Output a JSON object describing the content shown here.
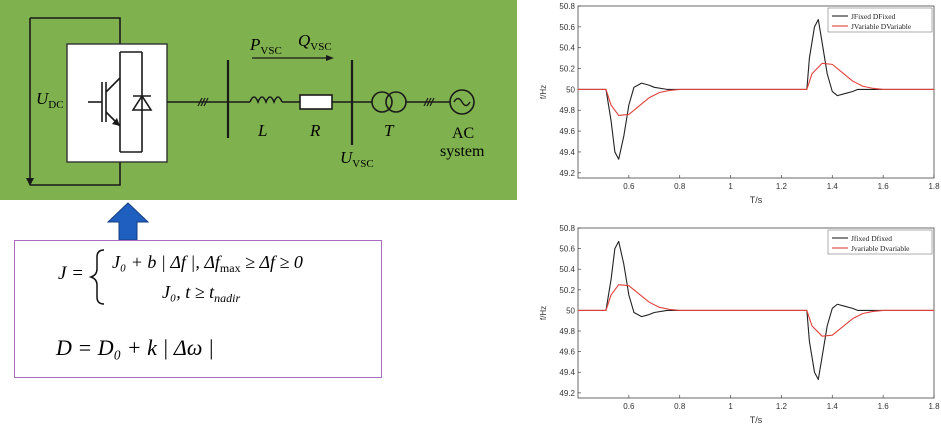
{
  "diagram": {
    "labels": {
      "udc_main": "U",
      "udc_sub": "DC",
      "p_main": "P",
      "p_sub": "VSC",
      "q_main": "Q",
      "q_sub": "VSC",
      "l": "L",
      "r": "R",
      "t": "T",
      "uvsc_main": "U",
      "uvsc_sub": "VSC",
      "ac_line1": "AC",
      "ac_line2": "system"
    },
    "colors": {
      "panel": "#7fb14e",
      "arrow": "#1f5fbf",
      "box_border": "#a96bc0"
    },
    "arrow_icon": "up-arrow-icon"
  },
  "formulas": {
    "j_lhs": "J =",
    "j_case1": "J₀ + b | Δf |,  Δf",
    "j_case1_sub": "max",
    "j_case1_tail": " ≥ Δf ≥ 0",
    "j_case2": "J₀,  t ≥ t",
    "j_case2_sub": "nadir",
    "d_eq": "D = D₀ + k | Δω |"
  },
  "chart_data": [
    {
      "type": "line",
      "xlabel": "T/s",
      "ylabel": "f/Hz",
      "xlim": [
        0.4,
        1.8
      ],
      "ylim": [
        49.15,
        50.8
      ],
      "xticks": [
        0.6,
        0.8,
        1,
        1.2,
        1.4,
        1.6,
        1.8
      ],
      "yticks": [
        49.2,
        49.4,
        49.6,
        49.8,
        50,
        50.2,
        50.4,
        50.6,
        50.8
      ],
      "legend_position": "top-right",
      "series": [
        {
          "name": "JFixed DFixed",
          "color": "#222222",
          "x": [
            0.4,
            0.51,
            0.53,
            0.545,
            0.56,
            0.58,
            0.6,
            0.62,
            0.65,
            0.68,
            0.7,
            0.75,
            0.8,
            1.3,
            1.31,
            1.33,
            1.345,
            1.36,
            1.38,
            1.4,
            1.42,
            1.45,
            1.48,
            1.5,
            1.55,
            1.6,
            1.8
          ],
          "y": [
            50,
            50,
            49.7,
            49.4,
            49.33,
            49.55,
            49.85,
            50.02,
            50.06,
            50.04,
            50.02,
            50,
            50,
            50,
            50.3,
            50.6,
            50.67,
            50.45,
            50.15,
            49.98,
            49.94,
            49.96,
            49.98,
            50,
            50,
            50,
            50
          ]
        },
        {
          "name": "JVariable DVariable",
          "color": "#e0403a",
          "x": [
            0.4,
            0.51,
            0.53,
            0.56,
            0.6,
            0.64,
            0.68,
            0.72,
            0.76,
            0.8,
            1.3,
            1.32,
            1.36,
            1.4,
            1.44,
            1.48,
            1.52,
            1.56,
            1.6,
            1.8
          ],
          "y": [
            50,
            50,
            49.85,
            49.75,
            49.76,
            49.84,
            49.92,
            49.97,
            49.99,
            50,
            50,
            50.15,
            50.25,
            50.24,
            50.16,
            50.08,
            50.03,
            50.01,
            50,
            50
          ]
        }
      ]
    },
    {
      "type": "line",
      "xlabel": "T/s",
      "ylabel": "f/Hz",
      "xlim": [
        0.4,
        1.8
      ],
      "ylim": [
        49.15,
        50.8
      ],
      "xticks": [
        0.6,
        0.8,
        1,
        1.2,
        1.4,
        1.6,
        1.8
      ],
      "yticks": [
        49.2,
        49.4,
        49.6,
        49.8,
        50,
        50.2,
        50.4,
        50.6,
        50.8
      ],
      "legend_position": "top-right",
      "series": [
        {
          "name": "Jfixed Dfixed",
          "color": "#222222",
          "x": [
            0.4,
            0.51,
            0.53,
            0.545,
            0.56,
            0.58,
            0.6,
            0.62,
            0.65,
            0.68,
            0.7,
            0.75,
            0.8,
            1.3,
            1.31,
            1.33,
            1.345,
            1.36,
            1.38,
            1.4,
            1.42,
            1.45,
            1.48,
            1.5,
            1.55,
            1.6,
            1.8
          ],
          "y": [
            50,
            50,
            50.3,
            50.6,
            50.67,
            50.45,
            50.15,
            49.98,
            49.94,
            49.96,
            49.98,
            50,
            50,
            50,
            49.7,
            49.4,
            49.33,
            49.55,
            49.85,
            50.02,
            50.06,
            50.04,
            50.02,
            50,
            50,
            50,
            50
          ]
        },
        {
          "name": "Jvariable Dvariable",
          "color": "#e0403a",
          "x": [
            0.4,
            0.51,
            0.53,
            0.56,
            0.6,
            0.64,
            0.68,
            0.72,
            0.76,
            0.8,
            1.3,
            1.32,
            1.36,
            1.4,
            1.44,
            1.48,
            1.52,
            1.56,
            1.6,
            1.8
          ],
          "y": [
            50,
            50,
            50.15,
            50.25,
            50.24,
            50.16,
            50.08,
            50.03,
            50.01,
            50,
            50,
            49.85,
            49.75,
            49.76,
            49.84,
            49.92,
            49.97,
            49.99,
            50,
            50
          ]
        }
      ]
    }
  ]
}
